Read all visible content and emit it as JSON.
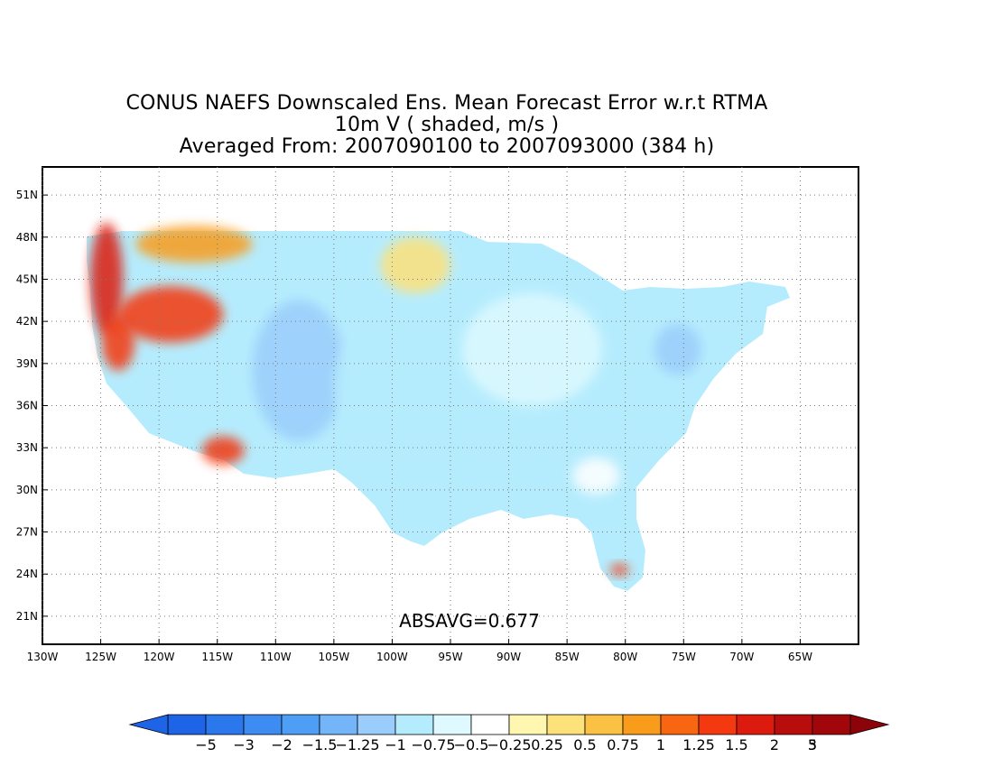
{
  "title": {
    "line1": "CONUS NAEFS Downscaled Ens. Mean Forecast Error w.r.t RTMA",
    "line2": "10m V ( shaded, m/s )",
    "line3": "Averaged From: 2007090100 to 2007093000 (384 h)"
  },
  "map": {
    "lon_range": [
      -130,
      -60
    ],
    "lat_range": [
      19,
      53
    ],
    "grid": "dotted",
    "lat_ticks": [
      "21N",
      "24N",
      "27N",
      "30N",
      "33N",
      "36N",
      "39N",
      "42N",
      "45N",
      "48N",
      "51N"
    ],
    "lat_values": [
      21,
      24,
      27,
      30,
      33,
      36,
      39,
      42,
      45,
      48,
      51
    ],
    "lon_ticks": [
      "130W",
      "125W",
      "120W",
      "115W",
      "110W",
      "105W",
      "100W",
      "95W",
      "90W",
      "85W",
      "80W",
      "75W",
      "70W",
      "65W"
    ],
    "lon_values": [
      -130,
      -125,
      -120,
      -115,
      -110,
      -105,
      -100,
      -95,
      -90,
      -85,
      -80,
      -75,
      -70,
      -65
    ],
    "absavg_label": "ABSAVG=0.677"
  },
  "colorbar": {
    "labels": [
      "−5",
      "−3",
      "−2",
      "−1.5",
      "−1.25",
      "−1",
      "−0.75",
      "−0.5",
      "−0.25",
      "0.25",
      "0.5",
      "0.75",
      "1",
      "1.25",
      "1.5",
      "2",
      "3",
      "5"
    ],
    "colors": [
      "#1e64e6",
      "#2b78ec",
      "#3c8cf2",
      "#4e9ef5",
      "#74b4f8",
      "#9acdfb",
      "#b5ecfd",
      "#def9ff",
      "#ffffff",
      "#fff7b0",
      "#fde17a",
      "#fbc145",
      "#f99c1c",
      "#f86612",
      "#f4380f",
      "#dc1a0e",
      "#b80d0c",
      "#a0060a"
    ]
  },
  "field_blobs": [
    {
      "lon": -124.5,
      "lat": 45,
      "value": 2,
      "rx": 1.4,
      "ry": 4
    },
    {
      "lon": -123.5,
      "lat": 40.5,
      "value": 1.5,
      "rx": 1.4,
      "ry": 2
    },
    {
      "lon": -119,
      "lat": 42.5,
      "value": 1.5,
      "rx": 4.5,
      "ry": 2
    },
    {
      "lon": -117,
      "lat": 47.5,
      "value": 1,
      "rx": 5,
      "ry": 1.3
    },
    {
      "lon": -114.5,
      "lat": 32.8,
      "value": 1.5,
      "rx": 1.8,
      "ry": 1
    },
    {
      "lon": -108,
      "lat": 38.5,
      "value": -1,
      "rx": 4,
      "ry": 5
    },
    {
      "lon": -98,
      "lat": 46,
      "value": 0.5,
      "rx": 3,
      "ry": 2
    },
    {
      "lon": -96,
      "lat": 37.5,
      "value": -0.75,
      "rx": 9,
      "ry": 6
    },
    {
      "lon": -88,
      "lat": 40,
      "value": -0.5,
      "rx": 6,
      "ry": 4
    },
    {
      "lon": -75.5,
      "lat": 40,
      "value": -1,
      "rx": 2,
      "ry": 1.8
    },
    {
      "lon": -82.5,
      "lat": 31,
      "value": 0.25,
      "rx": 2,
      "ry": 1.3
    },
    {
      "lon": -80.5,
      "lat": 24.3,
      "value": 1.5,
      "rx": 0.8,
      "ry": 0.4
    }
  ]
}
